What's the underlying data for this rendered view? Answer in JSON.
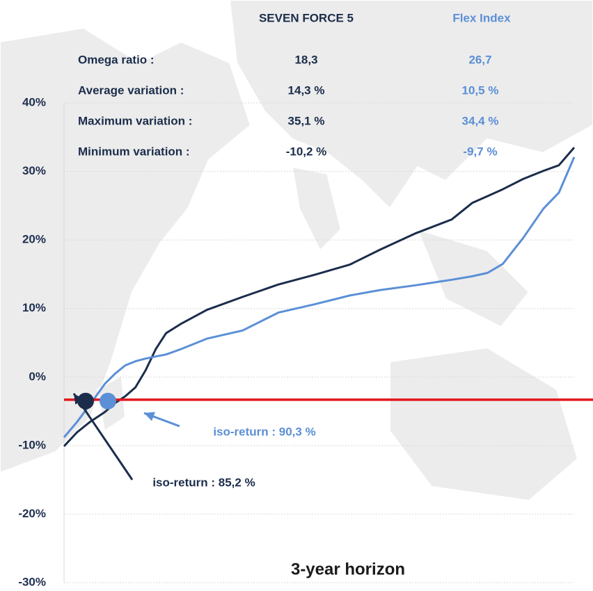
{
  "chart_data": {
    "type": "line",
    "title": "3-year horizon",
    "x": [
      0,
      2.5,
      5,
      8,
      10,
      12,
      14,
      16,
      18,
      20,
      23,
      28,
      35,
      42,
      49,
      56,
      62,
      69,
      76,
      80,
      83,
      86,
      90,
      94,
      97,
      100
    ],
    "xlim": [
      0,
      100
    ],
    "ylim": [
      -30,
      40
    ],
    "yticks": [
      {
        "value": -30,
        "label": "-30%"
      },
      {
        "value": -20,
        "label": "-20%"
      },
      {
        "value": -10,
        "label": "-10%"
      },
      {
        "value": 0,
        "label": "0%"
      },
      {
        "value": 10,
        "label": "10%"
      },
      {
        "value": 20,
        "label": "20%"
      },
      {
        "value": 30,
        "label": "30%"
      },
      {
        "value": 40,
        "label": "40%"
      }
    ],
    "grid": true,
    "series": [
      {
        "name": "SEVEN FORCE 5",
        "color": "#1b2d4b",
        "values": [
          -10.1,
          -8.1,
          -6.6,
          -5.1,
          -3.8,
          -2.8,
          -1.5,
          1.0,
          4.1,
          6.4,
          7.8,
          9.8,
          11.7,
          13.5,
          14.9,
          16.4,
          18.6,
          21.0,
          23.0,
          25.4,
          26.4,
          27.4,
          28.9,
          30.1,
          30.9,
          33.5
        ],
        "annotation": "iso-return : 85,2 %"
      },
      {
        "name": "Flex Index",
        "color": "#5b8fd6",
        "values": [
          -8.8,
          -6.6,
          -4.1,
          -1.0,
          0.5,
          1.7,
          2.3,
          2.7,
          3.0,
          3.3,
          4.1,
          5.6,
          6.8,
          9.4,
          10.6,
          11.9,
          12.7,
          13.4,
          14.2,
          14.7,
          15.2,
          16.5,
          20.3,
          24.6,
          26.9,
          32.1
        ],
        "annotation": "iso-return : 90,3 %"
      }
    ],
    "reference_line": -3.3,
    "reference_color": "#e3161b",
    "stats": {
      "rows": [
        {
          "label": "Omega ratio :",
          "values": [
            "18,3",
            "26,7"
          ]
        },
        {
          "label": "Average variation :",
          "values": [
            "14,3 %",
            "10,5 %"
          ]
        },
        {
          "label": "Maximum variation :",
          "values": [
            "35,1 %",
            "34,4 %"
          ]
        },
        {
          "label": "Minimum variation :",
          "values": [
            "-10,2 %",
            "-9,7 %"
          ]
        }
      ]
    }
  }
}
